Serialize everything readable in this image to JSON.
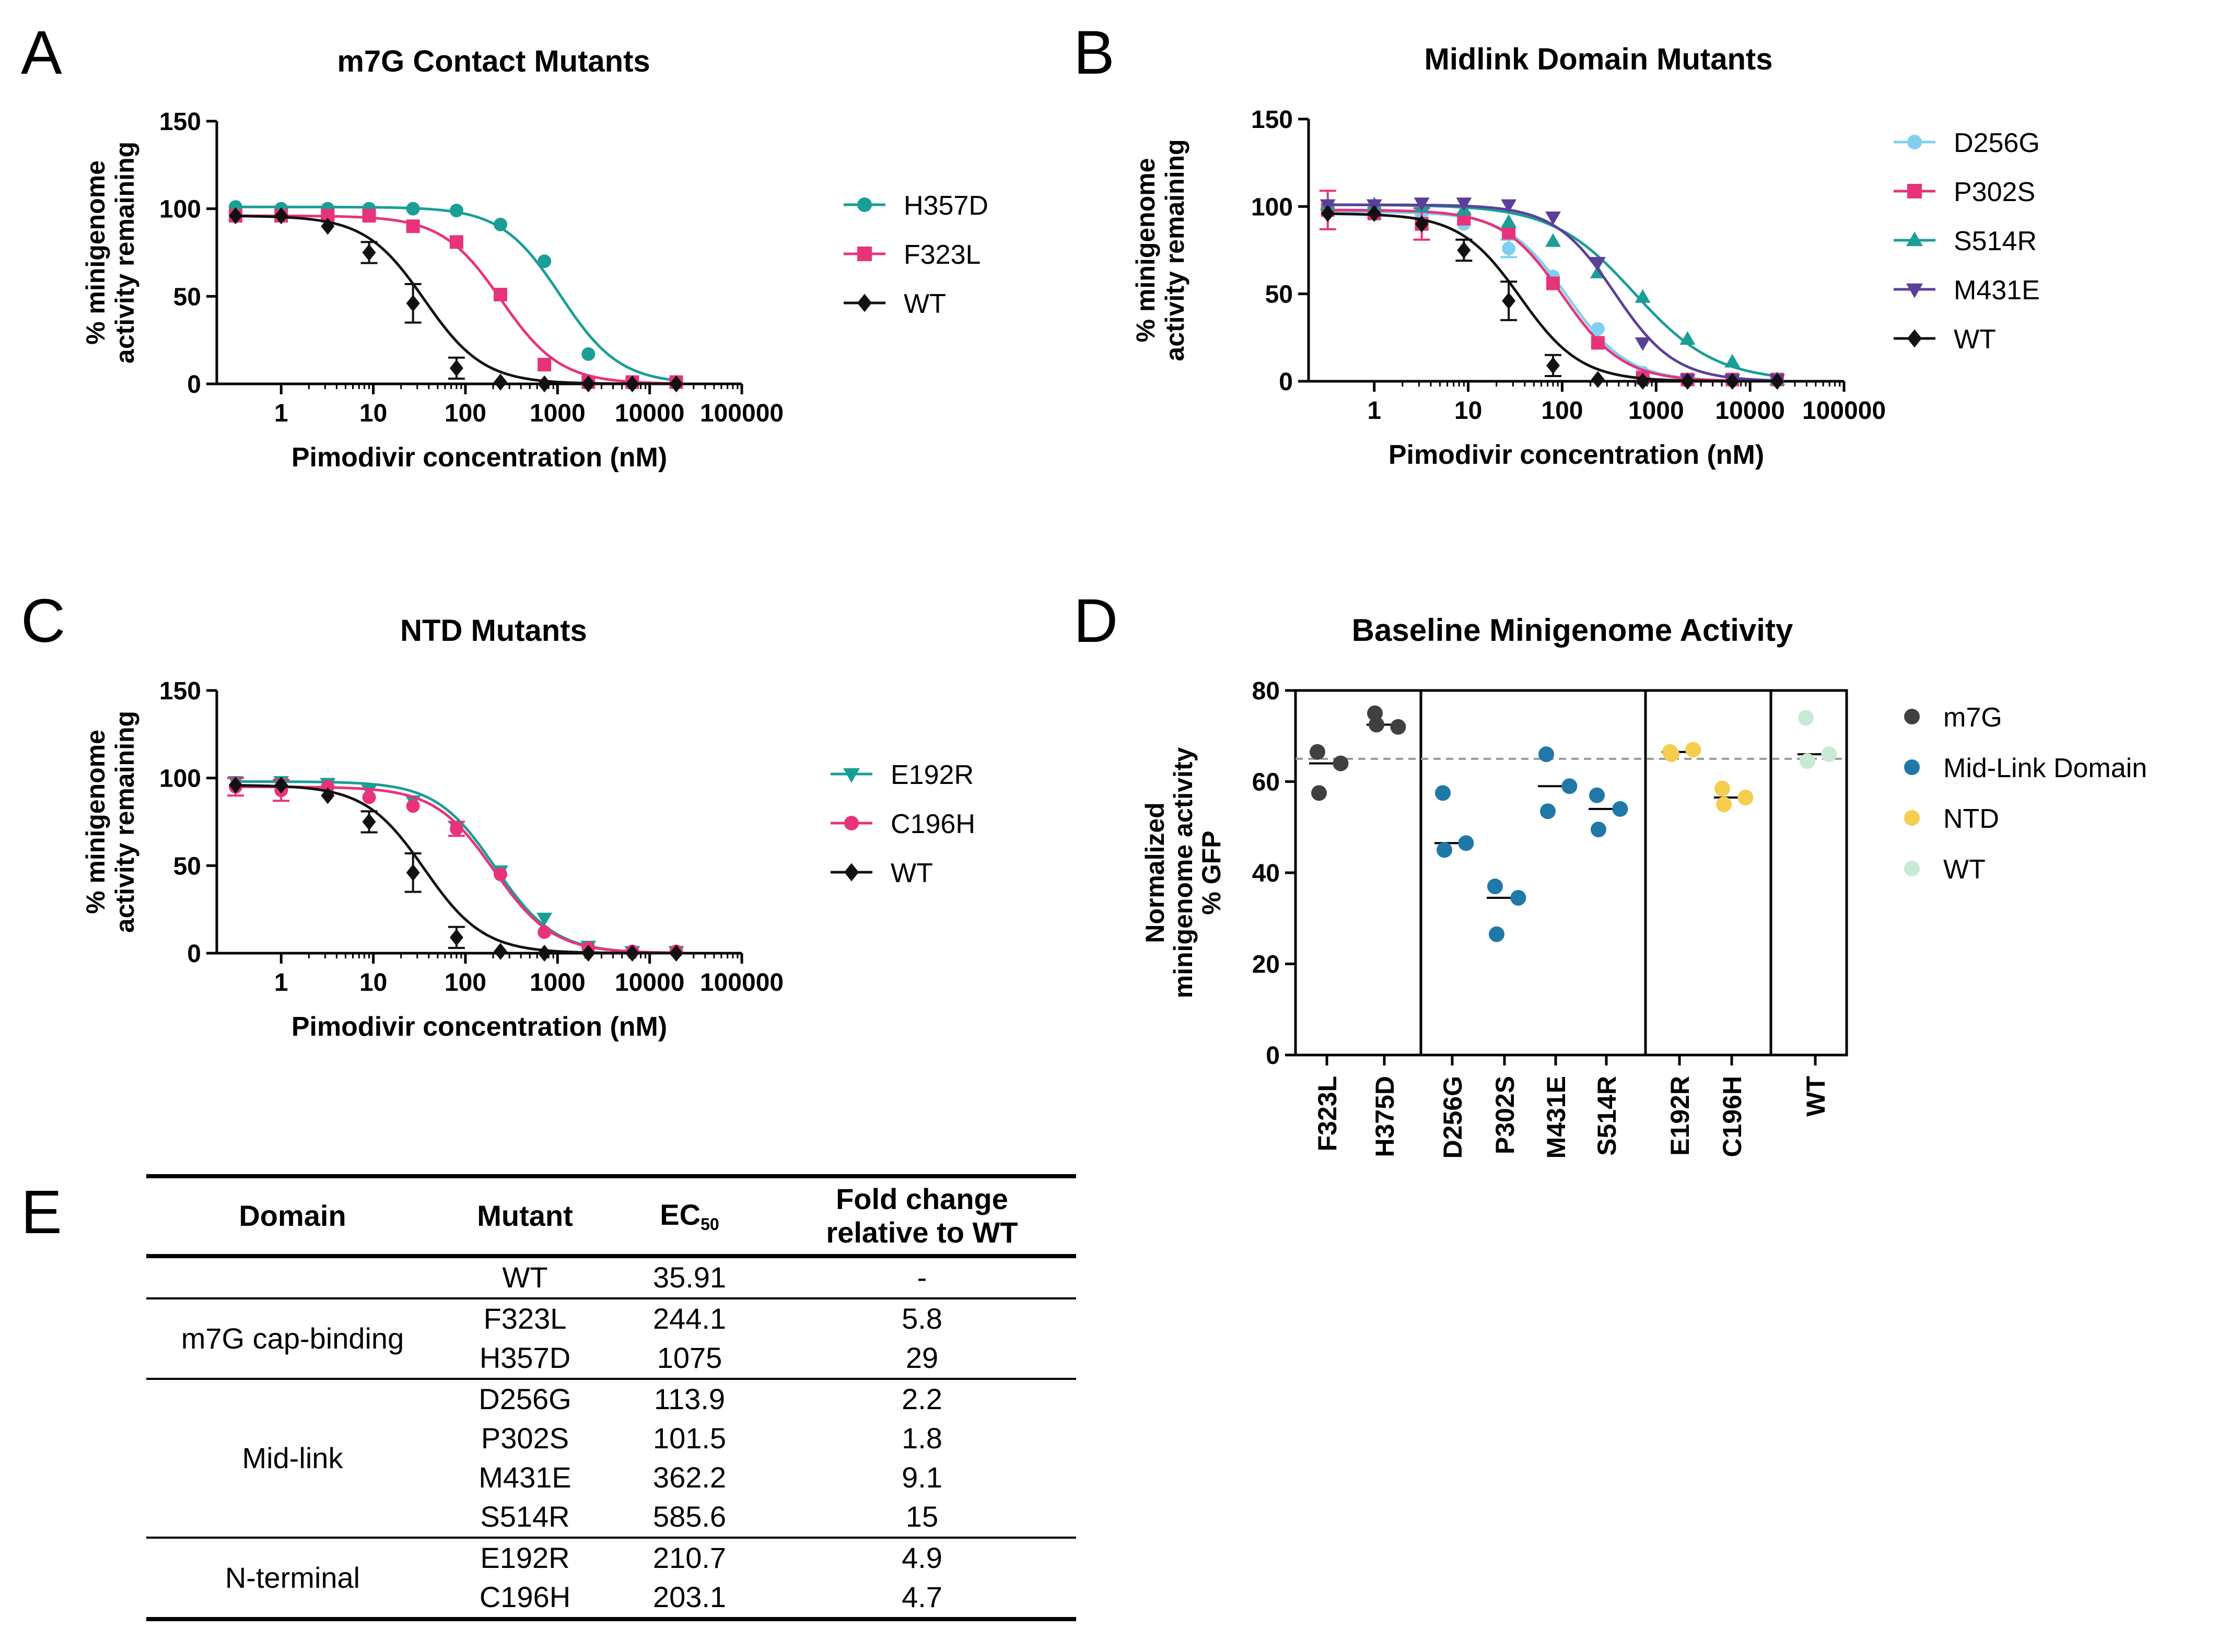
{
  "panel_letters": [
    "A",
    "B",
    "C",
    "D",
    "E"
  ],
  "chart_data": [
    {
      "panel": "A",
      "type": "line",
      "title": "m7G Contact Mutants",
      "xlabel": "Pimodivir concentration (nM)",
      "ylabel_lines": [
        "% minigenome",
        "activity remaining"
      ],
      "xscale": "log",
      "xlim": [
        0.2,
        100000
      ],
      "ylim": [
        0,
        150
      ],
      "xticks": [
        1,
        10,
        100,
        1000,
        10000,
        100000
      ],
      "xtick_labels": [
        "1",
        "10",
        "100",
        "1000",
        "10000",
        "100000"
      ],
      "yticks": [
        0,
        50,
        100,
        150
      ],
      "ytick_labels": [
        "0",
        "50",
        "100",
        "150"
      ],
      "x": [
        0.32,
        1,
        3.2,
        9,
        27,
        80,
        240,
        720,
        2160,
        6480,
        19440
      ],
      "series": [
        {
          "name": "H357D",
          "color": "#1a9e96",
          "marker": "circle",
          "ec50": 1075,
          "values": [
            101,
            100,
            100,
            100,
            100,
            99,
            91,
            70,
            17,
            1,
            1
          ]
        },
        {
          "name": "F323L",
          "color": "#e8337a",
          "marker": "square",
          "ec50": 244.1,
          "values": [
            96,
            96,
            96,
            96,
            90,
            81,
            51,
            11,
            1,
            1,
            1
          ]
        },
        {
          "name": "WT",
          "color": "#111111",
          "marker": "diamond",
          "ec50": 35.91,
          "values": [
            96,
            96,
            90,
            75,
            46,
            9,
            1,
            0,
            0,
            0,
            0
          ],
          "errors": [
            0,
            0,
            0,
            6,
            11,
            6,
            0,
            0,
            0,
            0,
            0
          ]
        }
      ]
    },
    {
      "panel": "B",
      "type": "line",
      "title": "Midlink Domain Mutants",
      "xlabel": "Pimodivir concentration (nM)",
      "ylabel_lines": [
        "% minigenome",
        "activity remaining"
      ],
      "xscale": "log",
      "xlim": [
        0.2,
        100000
      ],
      "ylim": [
        0,
        150
      ],
      "xticks": [
        1,
        10,
        100,
        1000,
        10000,
        100000
      ],
      "xtick_labels": [
        "1",
        "10",
        "100",
        "1000",
        "10000",
        "100000"
      ],
      "yticks": [
        0,
        50,
        100,
        150
      ],
      "ytick_labels": [
        "0",
        "50",
        "100",
        "150"
      ],
      "x": [
        0.32,
        1,
        3.2,
        9,
        27,
        80,
        240,
        720,
        2160,
        6480,
        19440
      ],
      "series": [
        {
          "name": "D256G",
          "color": "#7fd0f0",
          "marker": "circle",
          "ec50": 113.9,
          "values": [
            97,
            96,
            95,
            90,
            76,
            60,
            30,
            5,
            1,
            1,
            1
          ],
          "errors": [
            0,
            0,
            0,
            0,
            5,
            0,
            0,
            0,
            0,
            0,
            0
          ]
        },
        {
          "name": "P302S",
          "color": "#e8337a",
          "marker": "square",
          "ec50": 101.5,
          "values": [
            98,
            96,
            90,
            93,
            85,
            56,
            22,
            2,
            1,
            1,
            1
          ],
          "errors": [
            11,
            0,
            9,
            0,
            0,
            0,
            0,
            0,
            0,
            0,
            0
          ]
        },
        {
          "name": "S514R",
          "color": "#1a9e96",
          "marker": "triangle-up",
          "ec50": 585.6,
          "values": [
            101,
            101,
            100,
            98,
            91,
            80,
            62,
            48,
            24,
            11,
            1
          ]
        },
        {
          "name": "M431E",
          "color": "#5b3f99",
          "marker": "triangle-down",
          "ec50": 362.2,
          "values": [
            101,
            101,
            102,
            102,
            101,
            94,
            68,
            22,
            1,
            1,
            1
          ]
        },
        {
          "name": "WT",
          "color": "#111111",
          "marker": "diamond",
          "ec50": 35.91,
          "values": [
            96,
            96,
            90,
            75,
            46,
            9,
            1,
            0,
            0,
            0,
            0
          ],
          "errors": [
            0,
            0,
            0,
            6,
            11,
            6,
            0,
            0,
            0,
            0,
            0
          ]
        }
      ]
    },
    {
      "panel": "C",
      "type": "line",
      "title": "NTD Mutants",
      "xlabel": "Pimodivir concentration (nM)",
      "ylabel_lines": [
        "% minigenome",
        "activity remaining"
      ],
      "xscale": "log",
      "xlim": [
        0.2,
        100000
      ],
      "ylim": [
        0,
        150
      ],
      "xticks": [
        1,
        10,
        100,
        1000,
        10000,
        100000
      ],
      "xtick_labels": [
        "1",
        "10",
        "100",
        "1000",
        "10000",
        "100000"
      ],
      "yticks": [
        0,
        50,
        100,
        150
      ],
      "ytick_labels": [
        "0",
        "50",
        "100",
        "150"
      ],
      "x": [
        0.32,
        1,
        3.2,
        9,
        27,
        80,
        240,
        720,
        2160,
        6480,
        19440
      ],
      "series": [
        {
          "name": "E192R",
          "color": "#1a9e96",
          "marker": "triangle-down",
          "ec50": 210.7,
          "values": [
            98,
            98,
            97,
            93,
            87,
            72,
            47,
            20,
            4,
            1,
            1
          ]
        },
        {
          "name": "C196H",
          "color": "#e8337a",
          "marker": "circle",
          "ec50": 203.1,
          "values": [
            95,
            93,
            95,
            89,
            84,
            71,
            45,
            12,
            3,
            1,
            1
          ],
          "errors": [
            5,
            6,
            0,
            0,
            0,
            4,
            0,
            0,
            0,
            0,
            0
          ]
        },
        {
          "name": "WT",
          "color": "#111111",
          "marker": "diamond",
          "ec50": 35.91,
          "values": [
            96,
            96,
            90,
            75,
            46,
            9,
            1,
            0,
            0,
            0,
            0
          ],
          "errors": [
            0,
            0,
            0,
            6,
            11,
            6,
            0,
            0,
            0,
            0,
            0
          ]
        }
      ]
    },
    {
      "panel": "D",
      "type": "scatter",
      "title": "Baseline Minigenome Activity",
      "ylabel_lines": [
        "Normalized",
        "minigenome activity",
        "% GFP"
      ],
      "ylim": [
        0,
        80
      ],
      "yticks": [
        0,
        20,
        40,
        60,
        80
      ],
      "ytick_labels": [
        "0",
        "20",
        "40",
        "60",
        "80"
      ],
      "reference_line": 65,
      "categories": [
        "F323L",
        "H375D",
        "D256G",
        "P302S",
        "M431E",
        "S514R",
        "E192R",
        "C196H",
        "WT"
      ],
      "groups": [
        {
          "name": "m7G",
          "color": "#404040",
          "categories": [
            "F323L",
            "H375D"
          ]
        },
        {
          "name": "Mid-Link Domain",
          "color": "#1f78a8",
          "categories": [
            "D256G",
            "P302S",
            "M431E",
            "S514R"
          ]
        },
        {
          "name": "NTD",
          "color": "#f5cd4f",
          "categories": [
            "E192R",
            "C196H"
          ]
        },
        {
          "name": "WT",
          "color": "#c8ead5",
          "categories": [
            "WT"
          ]
        }
      ],
      "points": [
        {
          "category": "F323L",
          "values": [
            66.5,
            64,
            57.5
          ],
          "median": 64
        },
        {
          "category": "H375D",
          "values": [
            75,
            72,
            72.5
          ],
          "median": 72.5
        },
        {
          "category": "D256G",
          "values": [
            57.5,
            46.5,
            45
          ],
          "median": 46.5
        },
        {
          "category": "P302S",
          "values": [
            37,
            34.5,
            26.5
          ],
          "median": 34.5
        },
        {
          "category": "M431E",
          "values": [
            66,
            59,
            53.5
          ],
          "median": 59
        },
        {
          "category": "S514R",
          "values": [
            57,
            54,
            49.5
          ],
          "median": 54
        },
        {
          "category": "E192R",
          "values": [
            66.5,
            67,
            66
          ],
          "median": 66.5
        },
        {
          "category": "C196H",
          "values": [
            58.5,
            56.5,
            55
          ],
          "median": 56.5
        },
        {
          "category": "WT",
          "values": [
            74,
            66,
            64.5
          ],
          "median": 66
        }
      ]
    }
  ],
  "table": {
    "headers": {
      "domain": "Domain",
      "mutant": "Mutant",
      "ec_main": "EC",
      "ec_sub": "50",
      "fold_line1": "Fold change",
      "fold_line2": "relative to WT"
    },
    "groups": [
      {
        "domain": "",
        "rows": [
          {
            "mutant": "WT",
            "ec50": "35.91",
            "fold": "-"
          }
        ]
      },
      {
        "domain": "m7G cap-binding",
        "rows": [
          {
            "mutant": "F323L",
            "ec50": "244.1",
            "fold": "5.8"
          },
          {
            "mutant": "H357D",
            "ec50": "1075",
            "fold": "29"
          }
        ]
      },
      {
        "domain": "Mid-link",
        "rows": [
          {
            "mutant": "D256G",
            "ec50": "113.9",
            "fold": "2.2"
          },
          {
            "mutant": "P302S",
            "ec50": "101.5",
            "fold": "1.8"
          },
          {
            "mutant": "M431E",
            "ec50": "362.2",
            "fold": "9.1"
          },
          {
            "mutant": "S514R",
            "ec50": "585.6",
            "fold": "15"
          }
        ]
      },
      {
        "domain": "N-terminal",
        "rows": [
          {
            "mutant": "E192R",
            "ec50": "210.7",
            "fold": "4.9"
          },
          {
            "mutant": "C196H",
            "ec50": "203.1",
            "fold": "4.7"
          }
        ]
      }
    ]
  }
}
